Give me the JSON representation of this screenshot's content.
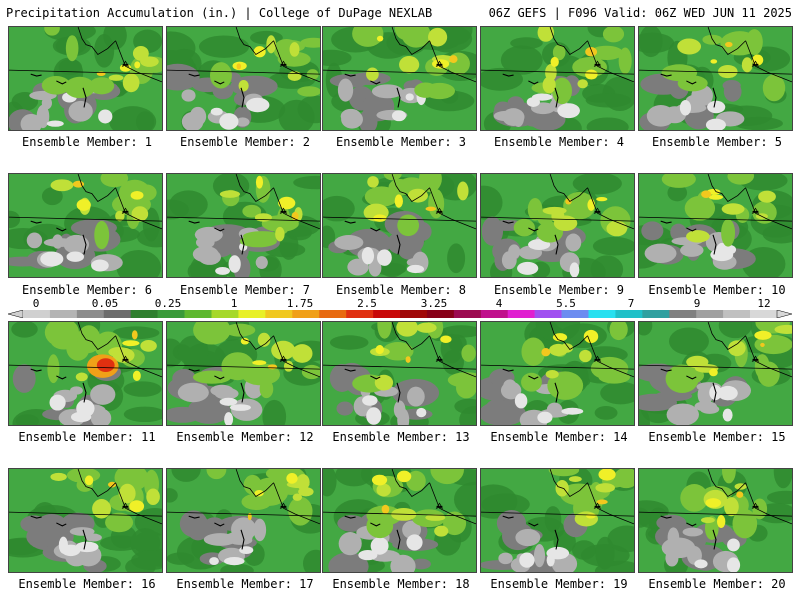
{
  "header": {
    "title": "Precipitation Accumulation (in.) | College of DuPage NEXLAB",
    "valid": "06Z GEFS | F096 Valid: 06Z WED JUN 11 2025"
  },
  "colorbar": {
    "tick_labels": [
      "0",
      "0.05",
      "0.25",
      "1",
      "1.75",
      "2.5",
      "3.25",
      "4",
      "5.5",
      "7",
      "9",
      "12"
    ],
    "colors": [
      "#d0d0d0",
      "#b4b4b4",
      "#8c8c8c",
      "#6c6c6c",
      "#2f7f2f",
      "#3a9a3a",
      "#5fb82f",
      "#a6d82a",
      "#e8f028",
      "#f0c820",
      "#f0a018",
      "#e86a10",
      "#e03010",
      "#c80808",
      "#a00808",
      "#880018",
      "#9c0a50",
      "#c0108c",
      "#e020d0",
      "#a050f0",
      "#6c8cf0",
      "#28e0f0",
      "#20c0c8",
      "#30a0a0",
      "#808080",
      "#a0a0a0",
      "#c0c0c0",
      "#d8d8d8"
    ],
    "map_colors": {
      "gray_light": "#e6e6e6",
      "gray_mid": "#b0b0b0",
      "gray_dark": "#7c7c7c",
      "green_dark": "#2f8a2f",
      "green": "#43a843",
      "green_light": "#7cc43a",
      "yellow_green": "#c0e038",
      "yellow": "#f0f028",
      "gold": "#f2c81e",
      "orange": "#f0a018",
      "red": "#e03010"
    }
  },
  "members": [
    {
      "label": "Ensemble Member: 1"
    },
    {
      "label": "Ensemble Member: 2"
    },
    {
      "label": "Ensemble Member: 3"
    },
    {
      "label": "Ensemble Member: 4"
    },
    {
      "label": "Ensemble Member: 5"
    },
    {
      "label": "Ensemble Member: 6"
    },
    {
      "label": "Ensemble Member: 7"
    },
    {
      "label": "Ensemble Member: 8"
    },
    {
      "label": "Ensemble Member: 9"
    },
    {
      "label": "Ensemble Member: 10"
    },
    {
      "label": "Ensemble Member: 11"
    },
    {
      "label": "Ensemble Member: 12"
    },
    {
      "label": "Ensemble Member: 13"
    },
    {
      "label": "Ensemble Member: 14"
    },
    {
      "label": "Ensemble Member: 15"
    },
    {
      "label": "Ensemble Member: 16"
    },
    {
      "label": "Ensemble Member: 17"
    },
    {
      "label": "Ensemble Member: 18"
    },
    {
      "label": "Ensemble Member: 19"
    },
    {
      "label": "Ensemble Member: 20"
    }
  ]
}
